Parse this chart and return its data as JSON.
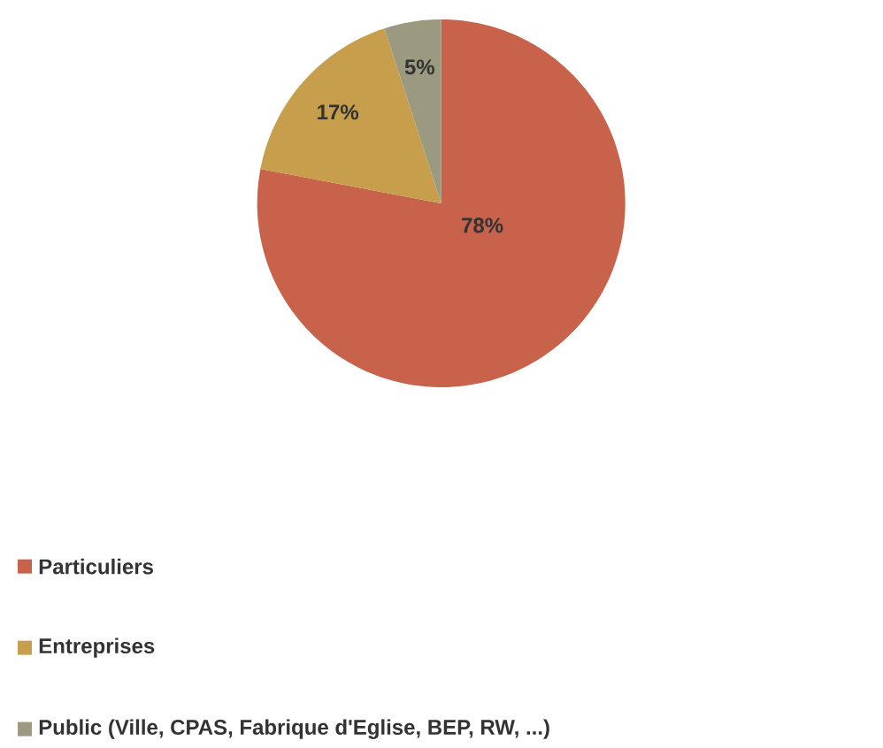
{
  "chart_data": {
    "type": "pie",
    "categories": [
      "Particuliers",
      "Entreprises",
      "Public (Ville, CPAS, Fabrique d'Eglise, BEP, RW, ...)"
    ],
    "values": [
      78,
      17,
      5
    ],
    "value_labels": [
      "78%",
      "17%",
      "5%"
    ],
    "colors": [
      "#c8624b",
      "#c79f4c",
      "#9b9a80"
    ],
    "legend": "bottom"
  }
}
